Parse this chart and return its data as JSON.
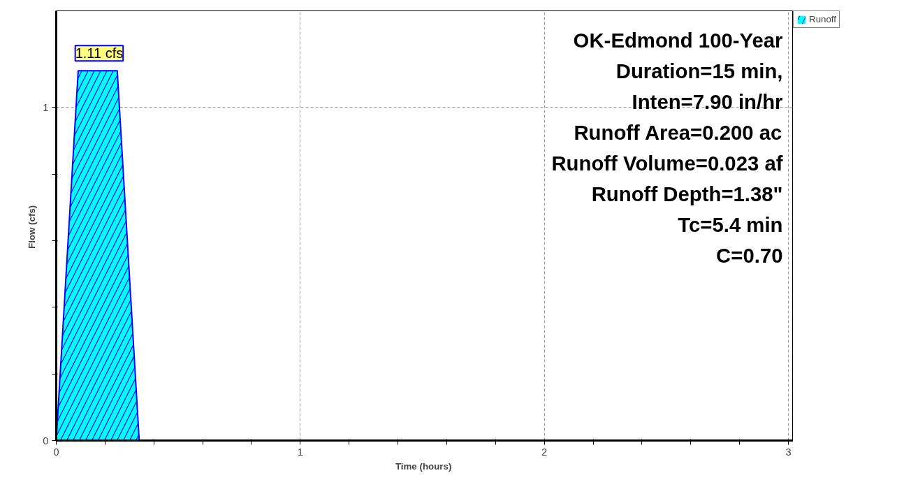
{
  "chart_data": {
    "type": "area",
    "xlabel": "Time  (hours)",
    "ylabel": "Flow  (cfs)",
    "x": [
      0,
      0.09,
      0.25,
      0.34,
      3.0
    ],
    "series": [
      {
        "name": "Runoff",
        "color": "#00ffff",
        "values": [
          0,
          1.11,
          1.11,
          0,
          0
        ],
        "value_labels": [
          null,
          "1.11 cfs",
          null,
          null,
          null
        ]
      }
    ],
    "xlim": [
      0,
      3.02
    ],
    "ylim": [
      0,
      1.29
    ],
    "xticks": [
      0,
      {
        "value": 0.2,
        "label": null
      },
      {
        "value": 0.4,
        "label": null
      },
      {
        "value": 0.6,
        "label": null
      },
      {
        "value": 0.8,
        "label": null
      },
      1,
      {
        "value": 1.2,
        "label": null
      },
      {
        "value": 1.4,
        "label": null
      },
      {
        "value": 1.6,
        "label": null
      },
      {
        "value": 1.8,
        "label": null
      },
      2,
      {
        "value": 2.2,
        "label": null
      },
      {
        "value": 2.4,
        "label": null
      },
      {
        "value": 2.6,
        "label": null
      },
      {
        "value": 2.8,
        "label": null
      },
      3
    ],
    "yticks": [
      0,
      {
        "value": 0.2,
        "label": null
      },
      {
        "value": 0.4,
        "label": null
      },
      {
        "value": 0.6,
        "label": null
      },
      {
        "value": 0.8,
        "label": null
      },
      1
    ],
    "grid": true,
    "legend": "top right",
    "annotations": [
      "OK-Edmond 100-Year",
      "Duration=15 min,",
      "Inten=7.90 in/hr",
      "Runoff Area=0.200 ac",
      "Runoff Volume=0.023 af",
      "Runoff Depth=1.38\"",
      "Tc=5.4 min",
      "C=0.70"
    ]
  }
}
